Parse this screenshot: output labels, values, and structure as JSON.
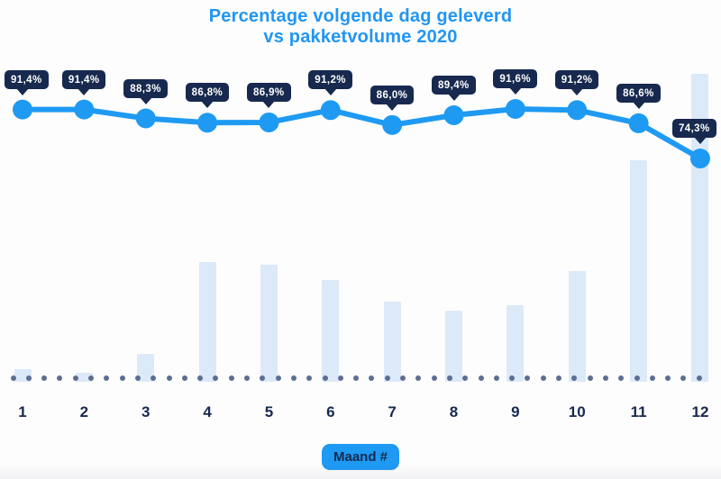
{
  "title": {
    "line1": "Percentage volgende dag geleverd",
    "line2": "vs pakketvolume 2020"
  },
  "x_axis_title": "Maand #",
  "colors": {
    "accent": "#1E9AF3",
    "title_blue": "#2196F3",
    "navy": "#17294E",
    "bar_light_blue": "#DCE9F8",
    "dot_slate": "#5C6E92",
    "badge_text": "#FFFFFF",
    "background": "#FDFDFD"
  },
  "chart_data": {
    "type": "line",
    "title": "Percentage volgende dag geleverd vs pakketvolume 2020",
    "xlabel": "Maand #",
    "ylabel": "",
    "categories": [
      "1",
      "2",
      "3",
      "4",
      "5",
      "6",
      "7",
      "8",
      "9",
      "10",
      "11",
      "12"
    ],
    "grid": "off",
    "legend_position": "none",
    "baseline_style": "dotted",
    "series": [
      {
        "name": "Percentage volgende dag geleverd",
        "type": "line",
        "values": [
          91.4,
          91.4,
          88.3,
          86.8,
          86.9,
          91.2,
          86.0,
          89.4,
          91.6,
          91.2,
          86.6,
          74.3
        ],
        "labels": [
          "91,4%",
          "91,4%",
          "88,3%",
          "86,8%",
          "86,9%",
          "91,2%",
          "86,0%",
          "89,4%",
          "91,6%",
          "91,2%",
          "86,6%",
          "74,3%"
        ],
        "value_range_shown": [
          74.3,
          91.6
        ]
      },
      {
        "name": "pakketvolume 2020",
        "type": "bar",
        "values_relative_pct_of_max": [
          4,
          3,
          9,
          39,
          38,
          33,
          26,
          23,
          25,
          36,
          72,
          100
        ]
      }
    ]
  }
}
